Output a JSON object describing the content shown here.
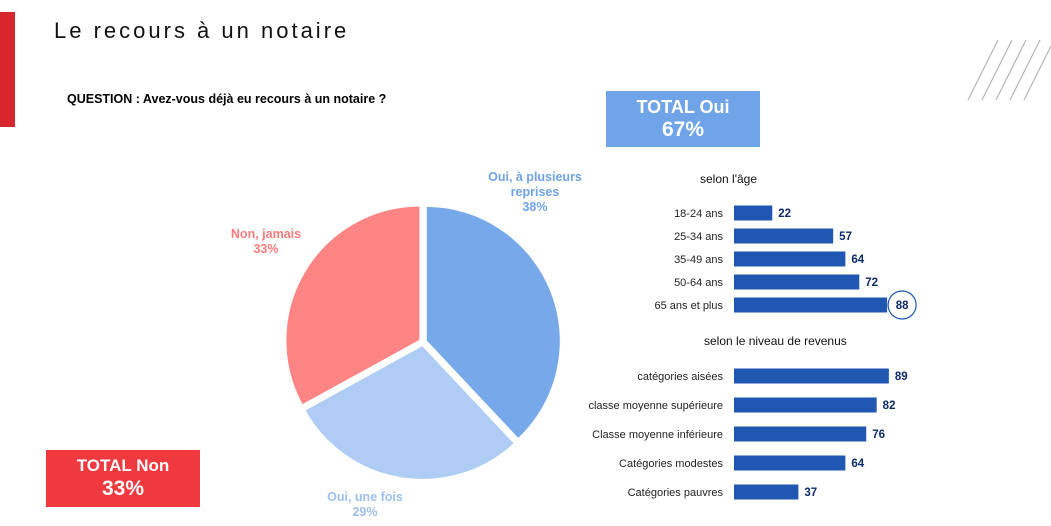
{
  "header": {
    "title": "Le recours à un notaire"
  },
  "question": "QUESTION : Avez-vous déjà eu recours à un notaire ?",
  "total_oui": {
    "label": "TOTAL Oui",
    "value": "67%"
  },
  "total_non": {
    "label": "TOTAL Non",
    "value": "33%"
  },
  "colors": {
    "accent_red": "#d7262e",
    "total_non_bg": "#f0393e",
    "total_oui_bg": "#6fa4e8",
    "bar": "#1f57b3",
    "value_text": "#0d2a6b"
  },
  "chart_data": [
    {
      "type": "pie",
      "slices": [
        {
          "name": "Oui, à plusieurs reprises",
          "value": 38,
          "label": "38%",
          "color": "#76a8ea",
          "label_color": "#6fa4e8"
        },
        {
          "name": "Oui, une fois",
          "value": 29,
          "label": "29%",
          "color": "#afcdf4",
          "label_color": "#9dc0ee"
        },
        {
          "name": "Non, jamais",
          "value": 33,
          "label": "33%",
          "color": "#ff8585",
          "label_color": "#ff7b7b"
        }
      ]
    },
    {
      "type": "bar",
      "title": "selon l'âge",
      "categories": [
        "18-24 ans",
        "25-34 ans",
        "35-49 ans",
        "50-64 ans",
        "65 ans et plus"
      ],
      "values": [
        22,
        57,
        64,
        72,
        88
      ],
      "highlight": "65 ans et plus"
    },
    {
      "type": "bar",
      "title": "selon le niveau de revenus",
      "categories": [
        "catégories aisées",
        "classe moyenne supérieure",
        "Classe moyenne inférieure",
        "Catégories modestes",
        "Catégories pauvres"
      ],
      "values": [
        89,
        82,
        76,
        64,
        37
      ]
    }
  ]
}
